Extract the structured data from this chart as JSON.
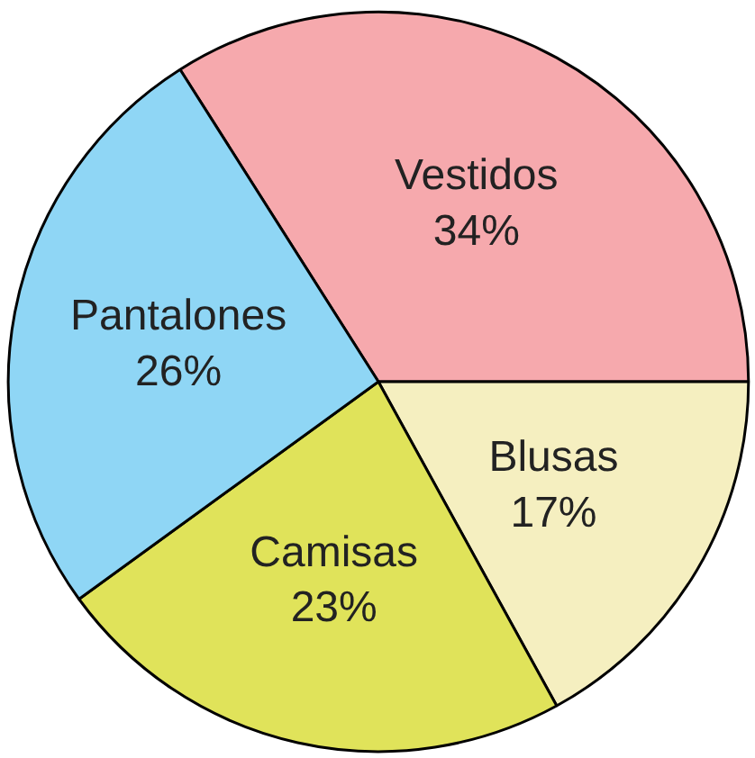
{
  "chart_data": {
    "type": "pie",
    "categories": [
      "Vestidos",
      "Blusas",
      "Camisas",
      "Pantalones"
    ],
    "values": [
      34,
      17,
      23,
      26
    ],
    "value_labels": [
      "34%",
      "17%",
      "23%",
      "26%"
    ],
    "colors": [
      "#f6a9ad",
      "#f5efc0",
      "#e0e35a",
      "#8fd6f5"
    ]
  }
}
